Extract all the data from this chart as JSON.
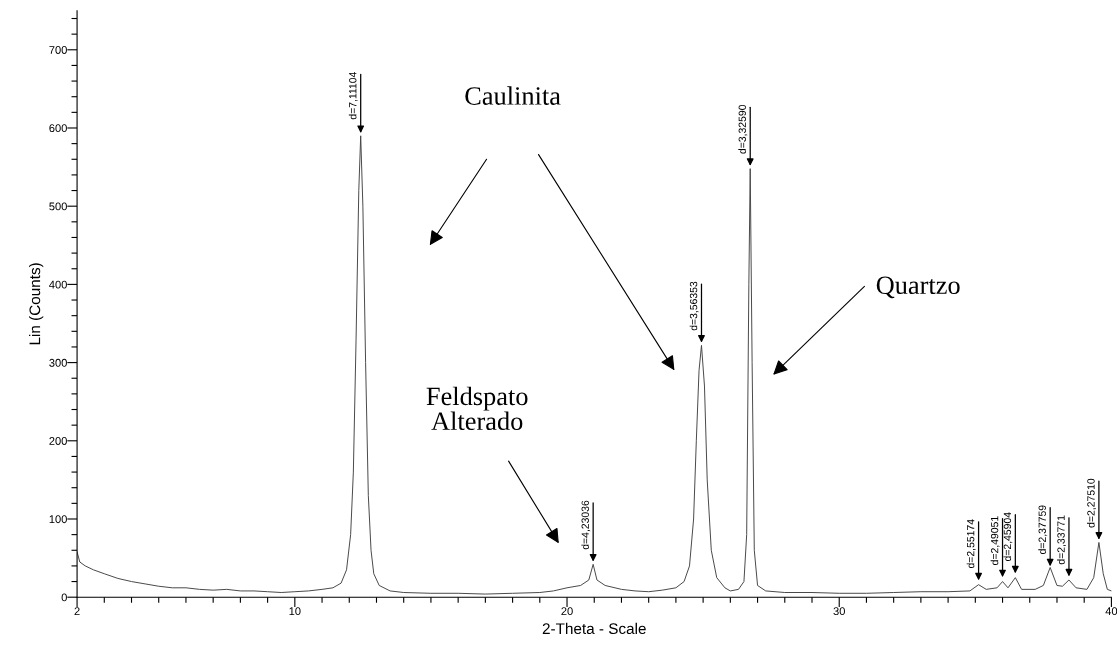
{
  "chart_data": {
    "type": "line",
    "xlabel": "2-Theta - Scale",
    "ylabel": "Lin (Counts)",
    "x": [
      2,
      2.1,
      2.3,
      2.6,
      3,
      3.5,
      4,
      4.5,
      5,
      5.5,
      6,
      6.5,
      7,
      7.5,
      8,
      8.5,
      9,
      9.5,
      10,
      10.5,
      11,
      11.4,
      11.7,
      11.9,
      12.05,
      12.15,
      12.25,
      12.35,
      12.42,
      12.5,
      12.6,
      12.7,
      12.8,
      12.9,
      13.1,
      13.5,
      14,
      15,
      16,
      17,
      18,
      19,
      19.5,
      20,
      20.5,
      20.8,
      20.96,
      21.1,
      21.4,
      22,
      22.5,
      23,
      23.5,
      24,
      24.3,
      24.5,
      24.65,
      24.75,
      24.85,
      24.94,
      25.05,
      25.15,
      25.3,
      25.5,
      25.8,
      26,
      26.3,
      26.5,
      26.6,
      26.68,
      26.73,
      26.8,
      26.88,
      27,
      27.3,
      28,
      29,
      30,
      31,
      32,
      33,
      34,
      34.8,
      35.12,
      35.4,
      35.8,
      36,
      36.2,
      36.47,
      36.7,
      37.2,
      37.5,
      37.75,
      38,
      38.2,
      38.44,
      38.7,
      39.1,
      39.35,
      39.54,
      39.7,
      39.85,
      40
    ],
    "series": [
      {
        "color": "#444444",
        "values": [
          58,
          45,
          40,
          35,
          30,
          24,
          20,
          17,
          14,
          12,
          12,
          10,
          9,
          10,
          8,
          8,
          7,
          6,
          7,
          8,
          10,
          12,
          18,
          35,
          80,
          160,
          330,
          520,
          590,
          500,
          300,
          130,
          60,
          30,
          15,
          8,
          6,
          5,
          5,
          4,
          5,
          6,
          8,
          12,
          15,
          22,
          42,
          22,
          15,
          10,
          8,
          7,
          9,
          12,
          20,
          40,
          100,
          200,
          290,
          322,
          270,
          150,
          60,
          25,
          12,
          8,
          10,
          20,
          80,
          400,
          548,
          300,
          60,
          15,
          8,
          6,
          6,
          5,
          5,
          6,
          7,
          7,
          8,
          16,
          10,
          12,
          20,
          12,
          25,
          10,
          10,
          15,
          38,
          15,
          14,
          22,
          12,
          10,
          25,
          70,
          30,
          10,
          8
        ]
      }
    ],
    "xlim": [
      2,
      40
    ],
    "ylim": [
      0,
      750
    ],
    "xticks": [
      2,
      {
        "value": 3,
        "label": null
      },
      {
        "value": 4,
        "label": null
      },
      {
        "value": 5,
        "label": null
      },
      {
        "value": 6,
        "label": null
      },
      {
        "value": 7,
        "label": null
      },
      {
        "value": 8,
        "label": null
      },
      {
        "value": 9,
        "label": null
      },
      10,
      {
        "value": 11,
        "label": null
      },
      {
        "value": 12,
        "label": null
      },
      {
        "value": 13,
        "label": null
      },
      {
        "value": 14,
        "label": null
      },
      {
        "value": 15,
        "label": null
      },
      {
        "value": 16,
        "label": null
      },
      {
        "value": 17,
        "label": null
      },
      {
        "value": 18,
        "label": null
      },
      {
        "value": 19,
        "label": null
      },
      20,
      {
        "value": 21,
        "label": null
      },
      {
        "value": 22,
        "label": null
      },
      {
        "value": 23,
        "label": null
      },
      {
        "value": 24,
        "label": null
      },
      {
        "value": 25,
        "label": null
      },
      {
        "value": 26,
        "label": null
      },
      {
        "value": 27,
        "label": null
      },
      {
        "value": 28,
        "label": null
      },
      {
        "value": 29,
        "label": null
      },
      30,
      {
        "value": 31,
        "label": null
      },
      {
        "value": 32,
        "label": null
      },
      {
        "value": 33,
        "label": null
      },
      {
        "value": 34,
        "label": null
      },
      {
        "value": 35,
        "label": null
      },
      {
        "value": 36,
        "label": null
      },
      {
        "value": 37,
        "label": null
      },
      {
        "value": 38,
        "label": null
      },
      {
        "value": 39,
        "label": null
      },
      40
    ],
    "yticks": [
      0,
      {
        "value": 20,
        "label": null
      },
      {
        "value": 40,
        "label": null
      },
      {
        "value": 60,
        "label": null
      },
      {
        "value": 80,
        "label": null
      },
      100,
      {
        "value": 120,
        "label": null
      },
      {
        "value": 140,
        "label": null
      },
      {
        "value": 160,
        "label": null
      },
      {
        "value": 180,
        "label": null
      },
      200,
      {
        "value": 220,
        "label": null
      },
      {
        "value": 240,
        "label": null
      },
      {
        "value": 260,
        "label": null
      },
      {
        "value": 280,
        "label": null
      },
      300,
      {
        "value": 320,
        "label": null
      },
      {
        "value": 340,
        "label": null
      },
      {
        "value": 360,
        "label": null
      },
      {
        "value": 380,
        "label": null
      },
      400,
      {
        "value": 420,
        "label": null
      },
      {
        "value": 440,
        "label": null
      },
      {
        "value": 460,
        "label": null
      },
      {
        "value": 480,
        "label": null
      },
      500,
      {
        "value": 520,
        "label": null
      },
      {
        "value": 540,
        "label": null
      },
      {
        "value": 560,
        "label": null
      },
      {
        "value": 580,
        "label": null
      },
      600,
      {
        "value": 620,
        "label": null
      },
      {
        "value": 640,
        "label": null
      },
      {
        "value": 660,
        "label": null
      },
      {
        "value": 680,
        "label": null
      },
      700,
      {
        "value": 720,
        "label": null
      },
      {
        "value": 740,
        "label": null
      }
    ],
    "grid": false,
    "legend": false,
    "marker": "none",
    "line_style": "solid",
    "annotations": [
      {
        "text": "d=7,11104",
        "x": 12.42,
        "y": 590
      },
      {
        "text": "d=4,23036",
        "x": 20.96,
        "y": 42
      },
      {
        "text": "d=3,56353",
        "x": 24.94,
        "y": 322
      },
      {
        "text": "d=3,32590",
        "x": 26.73,
        "y": 548
      },
      {
        "text": "d=2,55174",
        "x": 35.12,
        "y": 18
      },
      {
        "text": "d=2,49051",
        "x": 36.0,
        "y": 22
      },
      {
        "text": "d=2,45904",
        "x": 36.47,
        "y": 27
      },
      {
        "text": "d=2,37759",
        "x": 37.75,
        "y": 36
      },
      {
        "text": "d=2,33771",
        "x": 38.44,
        "y": 23
      },
      {
        "text": "d=2,27510",
        "x": 39.54,
        "y": 70
      },
      "Caulinita",
      "Quartzo",
      "Feldspato\nAlterado"
    ]
  }
}
